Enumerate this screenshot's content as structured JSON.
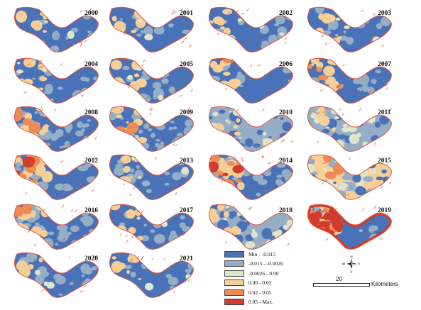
{
  "map": {
    "panels": [
      {
        "year": "2000",
        "pattern": "mostly-low"
      },
      {
        "year": "2001",
        "pattern": "mostly-low"
      },
      {
        "year": "2002",
        "pattern": "mostly-low"
      },
      {
        "year": "2003",
        "pattern": "mostly-low"
      },
      {
        "year": "2004",
        "pattern": "mostly-low"
      },
      {
        "year": "2005",
        "pattern": "mostly-low"
      },
      {
        "year": "2006",
        "pattern": "low-west-warm"
      },
      {
        "year": "2007",
        "pattern": "low-west-warm"
      },
      {
        "year": "2008",
        "pattern": "mixed"
      },
      {
        "year": "2009",
        "pattern": "mixed"
      },
      {
        "year": "2010",
        "pattern": "mixed-light"
      },
      {
        "year": "2011",
        "pattern": "mixed-light"
      },
      {
        "year": "2012",
        "pattern": "mixed-warm"
      },
      {
        "year": "2013",
        "pattern": "mostly-low"
      },
      {
        "year": "2014",
        "pattern": "mixed-warm"
      },
      {
        "year": "2015",
        "pattern": "mostly-warm"
      },
      {
        "year": "2016",
        "pattern": "mixed"
      },
      {
        "year": "2017",
        "pattern": "mostly-low"
      },
      {
        "year": "2018",
        "pattern": "mixed-light"
      },
      {
        "year": "2019",
        "pattern": "extreme"
      },
      {
        "year": "2020",
        "pattern": "mostly-low"
      },
      {
        "year": "2021",
        "pattern": "mostly-low"
      }
    ],
    "legend": [
      {
        "label": "Min - -0.015",
        "color": "#4a72b8"
      },
      {
        "label": "-0.015 - -0.0026",
        "color": "#94aec6"
      },
      {
        "label": "-0.0026 - 0.00",
        "color": "#dfe4cc"
      },
      {
        "label": "0.00 - 0.02",
        "color": "#f6cf96"
      },
      {
        "label": "0.02 - 0.05",
        "color": "#ee8a56"
      },
      {
        "label": "0.05 - Max.",
        "color": "#d13c2c"
      }
    ],
    "shore_color": "#e0553c",
    "north_arrow": {
      "n": "N",
      "s": "S",
      "e": "E",
      "w": "W"
    },
    "scale_bar": {
      "value": "20",
      "unit": "Kilometers"
    }
  }
}
